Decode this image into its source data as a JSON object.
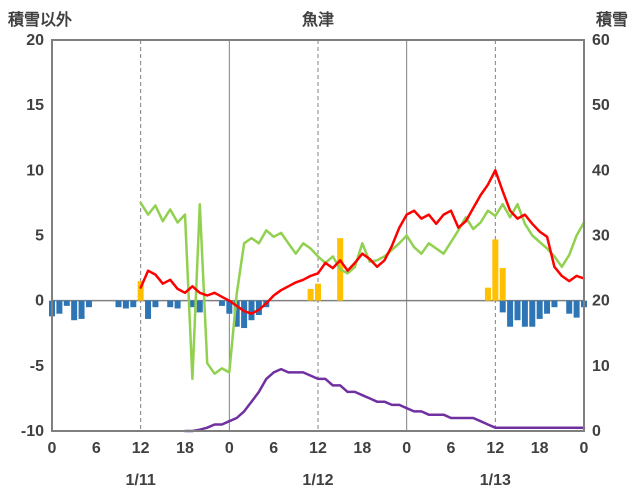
{
  "chart_data": {
    "type": "line",
    "title": "魚津",
    "left_axis_title": "積雪以外",
    "right_axis_title": "積雪",
    "left_axis": {
      "min": -10,
      "max": 20,
      "ticks": [
        20,
        15,
        10,
        5,
        0,
        -5,
        -10
      ]
    },
    "right_axis": {
      "min": 0,
      "max": 60,
      "ticks": [
        60,
        50,
        40,
        30,
        20,
        10,
        0
      ]
    },
    "x_axis": {
      "hours_total": 72,
      "tick_step": 6,
      "tick_labels": [
        "0",
        "6",
        "12",
        "18",
        "0",
        "6",
        "12",
        "18",
        "0",
        "6",
        "12",
        "18",
        "0"
      ],
      "day_labels": [
        {
          "label": "1/11",
          "hour": 12
        },
        {
          "label": "1/12",
          "hour": 36
        },
        {
          "label": "1/13",
          "hour": 60
        }
      ],
      "gridlines": [
        {
          "hour": 12,
          "style": "dashed"
        },
        {
          "hour": 24,
          "style": "solid"
        },
        {
          "hour": 36,
          "style": "dashed"
        },
        {
          "hour": 48,
          "style": "solid"
        },
        {
          "hour": 60,
          "style": "dashed"
        }
      ]
    },
    "colors": {
      "grid": "#808080",
      "border": "#7F7F7F",
      "text": "#404040"
    },
    "series": [
      {
        "name": "orange-bars",
        "type": "bar",
        "axis": "left",
        "color": "#FFC000",
        "values": [
          0,
          0,
          0,
          0,
          0,
          0,
          0,
          0,
          0,
          0,
          0,
          0,
          1.5,
          0,
          0,
          0,
          0,
          0,
          0,
          0,
          0,
          0,
          0,
          0,
          0,
          0,
          0,
          0,
          0,
          0,
          0,
          0,
          0,
          0,
          0,
          0.9,
          1.3,
          0,
          0,
          4.8,
          0,
          0,
          0,
          0,
          0,
          0,
          0,
          0,
          0,
          0,
          0,
          0,
          0,
          0,
          0,
          0,
          0,
          0,
          0,
          1.0,
          4.7,
          2.5,
          0,
          0,
          0,
          0,
          0,
          0,
          0,
          0,
          0,
          0,
          0
        ]
      },
      {
        "name": "blue-bars",
        "type": "bar",
        "axis": "left",
        "color": "#2E75B6",
        "values": [
          -1.2,
          -1.0,
          -0.4,
          -1.5,
          -1.4,
          -0.5,
          0,
          0,
          0,
          -0.5,
          -0.6,
          -0.5,
          0,
          -1.4,
          -0.5,
          0,
          -0.5,
          -0.6,
          0,
          -0.5,
          -0.9,
          0,
          0,
          -0.4,
          -1.0,
          -2.0,
          -2.1,
          -1.5,
          -1.1,
          -0.5,
          0,
          0,
          0,
          0,
          0,
          0,
          0,
          0,
          0,
          0,
          0,
          0,
          0,
          0,
          0,
          0,
          0,
          0,
          0,
          0,
          0,
          0,
          0,
          0,
          0,
          0,
          0,
          0,
          0,
          0,
          0,
          -0.9,
          -2.0,
          -1.5,
          -2.0,
          -2.0,
          -1.4,
          -1.0,
          -0.5,
          0,
          -1.0,
          -1.3,
          -0.5
        ]
      },
      {
        "name": "green-line",
        "type": "line",
        "axis": "left",
        "color": "#92D050",
        "values": [
          null,
          null,
          null,
          null,
          null,
          null,
          null,
          null,
          null,
          null,
          null,
          null,
          7.5,
          6.6,
          7.3,
          6.1,
          7.0,
          6.0,
          6.6,
          -6.0,
          7.4,
          -4.8,
          -5.6,
          -5.2,
          -5.5,
          0.5,
          4.4,
          4.8,
          4.4,
          5.4,
          4.9,
          5.2,
          4.4,
          3.6,
          4.4,
          4.0,
          3.4,
          2.9,
          3.4,
          2.4,
          2.1,
          2.6,
          4.4,
          3.0,
          3.1,
          3.4,
          3.9,
          4.4,
          5.0,
          4.1,
          3.6,
          4.4,
          4.0,
          3.6,
          4.5,
          5.4,
          6.4,
          5.5,
          6.0,
          6.9,
          6.5,
          7.4,
          6.4,
          7.4,
          5.9,
          5.0,
          4.5,
          4.0,
          3.4,
          2.6,
          3.5,
          5.0,
          6.0
        ]
      },
      {
        "name": "snow-depth-purple-line",
        "type": "line",
        "axis": "right",
        "color": "#7030A0",
        "values": [
          null,
          null,
          null,
          null,
          null,
          null,
          null,
          null,
          null,
          null,
          null,
          null,
          null,
          null,
          null,
          null,
          null,
          null,
          0,
          0,
          0.2,
          0.5,
          1,
          1,
          1.5,
          2,
          3,
          4.5,
          6,
          8,
          9,
          9.5,
          9,
          9,
          9,
          8.5,
          8,
          8,
          7,
          7,
          6,
          6,
          5.5,
          5,
          4.5,
          4.5,
          4,
          4,
          3.5,
          3,
          3,
          2.5,
          2.5,
          2.5,
          2,
          2,
          2,
          2,
          1.5,
          1,
          0.5,
          0.5,
          0.5,
          0.5,
          0.5,
          0.5,
          0.5,
          0.5,
          0.5,
          0.5,
          0.5,
          0.5,
          0.5
        ]
      },
      {
        "name": "red-line",
        "type": "line",
        "axis": "left",
        "color": "#FF0000",
        "values": [
          null,
          null,
          null,
          null,
          null,
          null,
          null,
          null,
          null,
          null,
          null,
          null,
          1.0,
          2.3,
          2.0,
          1.3,
          1.6,
          0.9,
          0.6,
          1.1,
          0.6,
          0.4,
          0.6,
          0.3,
          0.0,
          -0.4,
          -0.8,
          -1.0,
          -0.7,
          -0.2,
          0.4,
          0.8,
          1.1,
          1.4,
          1.6,
          1.9,
          2.1,
          2.9,
          2.5,
          3.1,
          2.3,
          2.9,
          3.6,
          3.2,
          2.6,
          3.1,
          4.2,
          5.6,
          6.6,
          6.9,
          6.3,
          6.6,
          5.9,
          6.6,
          6.9,
          5.6,
          6.1,
          7.1,
          8.1,
          8.9,
          10.0,
          8.4,
          6.9,
          6.3,
          6.6,
          5.9,
          5.3,
          4.9,
          2.6,
          1.9,
          1.5,
          1.9,
          1.7
        ]
      }
    ]
  }
}
